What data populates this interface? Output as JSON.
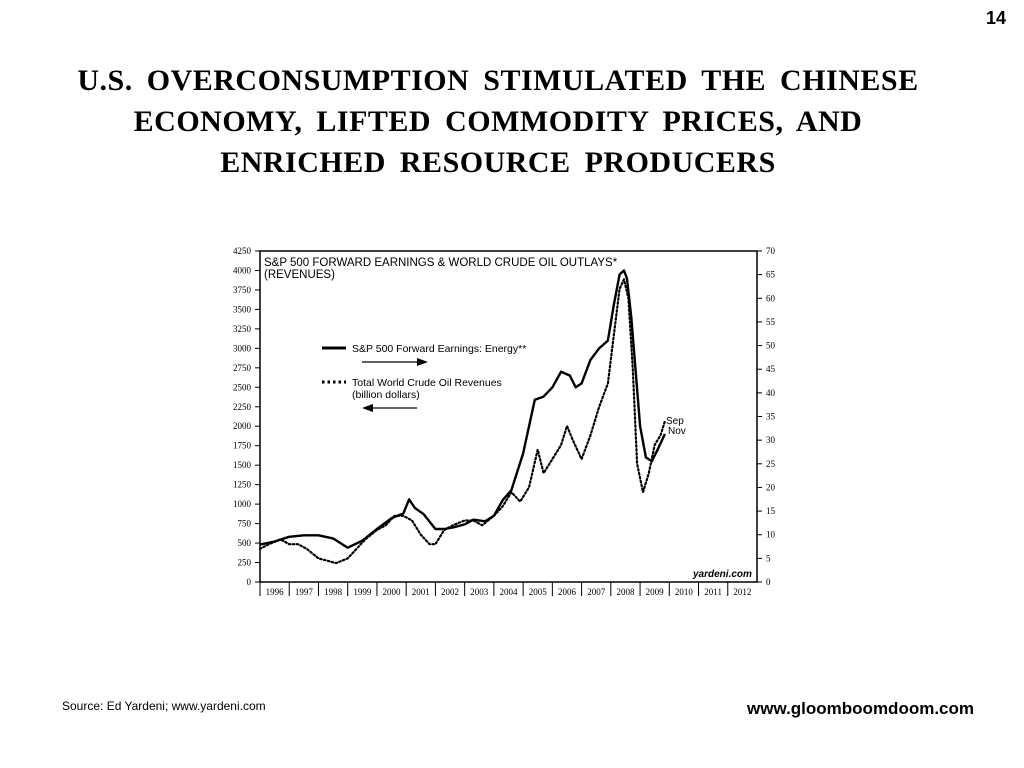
{
  "page_number": "14",
  "title_lines": [
    "U.S.  OVERCONSUMPTION  STIMULATED  THE  CHINESE",
    "ECONOMY,  LIFTED  COMMODITY  PRICES,  AND",
    "ENRICHED  RESOURCE  PRODUCERS"
  ],
  "source_note": "Source: Ed Yardeni; www.yardeni.com",
  "website": "www.gloomboomdoom.com",
  "chart_data": {
    "type": "line",
    "title_lines": [
      "S&P 500 FORWARD EARNINGS & WORLD CRUDE OIL OUTLAYS*",
      "(REVENUES)"
    ],
    "watermark": "yardeni.com",
    "end_label_lines": [
      "Sep",
      "Nov"
    ],
    "x_ticks": [
      "1996",
      "1997",
      "1998",
      "1999",
      "2000",
      "2001",
      "2002",
      "2003",
      "2004",
      "2005",
      "2006",
      "2007",
      "2008",
      "2009",
      "2010",
      "2011",
      "2012"
    ],
    "xlim": [
      1996,
      2013
    ],
    "y_left": {
      "ylim": [
        0,
        4250
      ],
      "ticks": [
        0,
        250,
        500,
        750,
        1000,
        1250,
        1500,
        1750,
        2000,
        2250,
        2500,
        2750,
        3000,
        3250,
        3500,
        3750,
        4000,
        4250
      ]
    },
    "y_right": {
      "ylim": [
        0,
        70
      ],
      "ticks": [
        0,
        5,
        10,
        15,
        20,
        25,
        30,
        35,
        40,
        45,
        50,
        55,
        60,
        65,
        70
      ]
    },
    "legend": [
      {
        "label": "S&P 500 Forward Earnings: Energy**",
        "arrow": "right"
      },
      {
        "label_lines": [
          "Total World Crude Oil Revenues",
          "(billion dollars)"
        ],
        "arrow": "left"
      }
    ],
    "series": [
      {
        "name": "S&P 500 Forward Earnings: Energy**",
        "axis": "left",
        "style": "solid",
        "x": [
          1996.0,
          1996.5,
          1997.0,
          1997.5,
          1998.0,
          1998.5,
          1999.0,
          1999.5,
          2000.0,
          2000.5,
          2000.9,
          2001.1,
          2001.3,
          2001.6,
          2002.0,
          2002.3,
          2002.6,
          2003.0,
          2003.3,
          2003.7,
          2004.0,
          2004.3,
          2004.6,
          2005.0,
          2005.4,
          2005.7,
          2006.0,
          2006.3,
          2006.6,
          2006.8,
          2007.0,
          2007.3,
          2007.6,
          2007.9,
          2008.1,
          2008.3,
          2008.45,
          2008.55,
          2008.7,
          2008.85,
          2009.0,
          2009.2,
          2009.4,
          2009.6,
          2009.85
        ],
        "values": [
          480,
          520,
          580,
          600,
          600,
          560,
          440,
          530,
          680,
          820,
          880,
          1060,
          950,
          870,
          680,
          680,
          700,
          740,
          800,
          780,
          850,
          1050,
          1180,
          1650,
          2340,
          2380,
          2500,
          2700,
          2650,
          2500,
          2550,
          2850,
          3000,
          3100,
          3550,
          3950,
          4000,
          3900,
          3400,
          2700,
          2000,
          1600,
          1550,
          1700,
          1900
        ]
      },
      {
        "name": "Total World Crude Oil Revenues",
        "axis": "right",
        "style": "dotted",
        "x": [
          1996.0,
          1996.3,
          1996.7,
          1997.0,
          1997.3,
          1997.6,
          1998.0,
          1998.3,
          1998.6,
          1999.0,
          1999.3,
          1999.6,
          2000.0,
          2000.3,
          2000.6,
          2000.9,
          2001.2,
          2001.5,
          2001.8,
          2002.0,
          2002.3,
          2002.6,
          2003.0,
          2003.3,
          2003.6,
          2004.0,
          2004.3,
          2004.6,
          2004.9,
          2005.2,
          2005.5,
          2005.7,
          2006.0,
          2006.3,
          2006.5,
          2006.7,
          2007.0,
          2007.3,
          2007.6,
          2007.9,
          2008.1,
          2008.3,
          2008.45,
          2008.6,
          2008.75,
          2008.9,
          2009.1,
          2009.3,
          2009.5,
          2009.7,
          2009.85
        ],
        "values": [
          7,
          8,
          9,
          8,
          8,
          7,
          5,
          4.5,
          4,
          5,
          7,
          9,
          11,
          12,
          14,
          14,
          13,
          10,
          8,
          8,
          11,
          12,
          13,
          13,
          12,
          14,
          16,
          19,
          17,
          20,
          28,
          23,
          26,
          29,
          33,
          30,
          26,
          31,
          37,
          42,
          52,
          62,
          64,
          60,
          45,
          25,
          19,
          23,
          29,
          31,
          34
        ]
      }
    ]
  }
}
